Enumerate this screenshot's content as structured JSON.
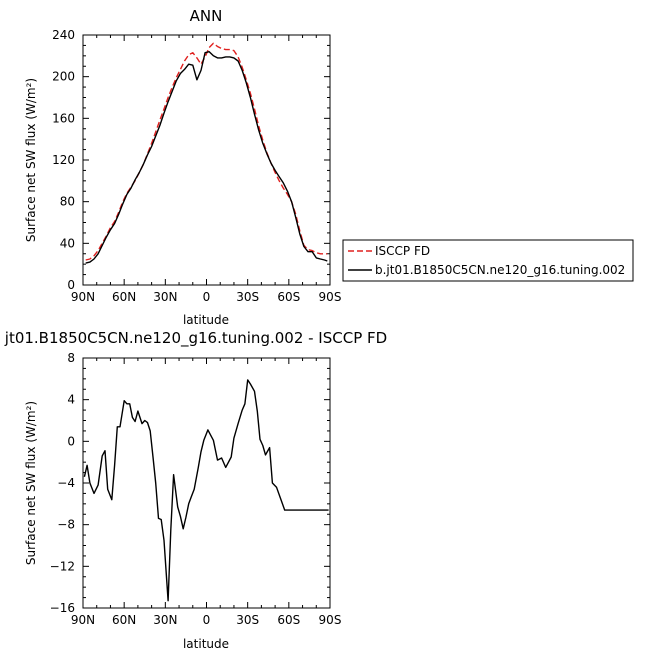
{
  "chart_data": [
    {
      "type": "line",
      "title": "ANN",
      "xlabel": "latitude",
      "ylabel": "Surface net SW flux (W/m²)",
      "ylim": [
        0,
        240
      ],
      "xlim": [
        -90,
        90
      ],
      "y_ticks": [
        0,
        40,
        80,
        120,
        160,
        200,
        240
      ],
      "x_ticks": [
        {
          "value": -90,
          "label": "90N"
        },
        {
          "value": -60,
          "label": "60N"
        },
        {
          "value": -30,
          "label": "30N"
        },
        {
          "value": 0,
          "label": "0"
        },
        {
          "value": 30,
          "label": "30S"
        },
        {
          "value": 60,
          "label": "60S"
        },
        {
          "value": 90,
          "label": "90S"
        }
      ],
      "legend_position": "right-bottom",
      "x": [
        -88,
        -85,
        -82,
        -79,
        -76,
        -73,
        -70,
        -67,
        -64,
        -61,
        -58,
        -55,
        -52,
        -49,
        -46,
        -43,
        -40,
        -37,
        -34,
        -31,
        -28,
        -25,
        -22,
        -19,
        -16,
        -13,
        -10,
        -7,
        -4,
        -1,
        2,
        5,
        8,
        11,
        14,
        17,
        20,
        23,
        26,
        29,
        32,
        35,
        38,
        41,
        44,
        47,
        50,
        53,
        56,
        59,
        62,
        65,
        68,
        71,
        74,
        77,
        80,
        83,
        86,
        88
      ],
      "series": [
        {
          "name": "ISCCP FD",
          "color": "#e0201e",
          "dash": "6,3",
          "values": [
            24,
            25,
            28,
            33,
            40,
            47,
            55,
            61,
            70,
            80,
            88,
            94,
            100,
            108,
            116,
            126,
            136,
            147,
            158,
            169,
            180,
            190,
            199,
            207,
            215,
            221,
            223,
            218,
            212,
            219,
            228,
            232,
            229,
            227,
            226,
            226,
            225,
            219,
            209,
            197,
            184,
            169,
            153,
            139,
            127,
            117,
            108,
            100,
            93,
            87,
            80,
            68,
            52,
            38,
            34,
            33,
            31,
            30,
            30,
            30
          ]
        },
        {
          "name": "b.jt01.B1850C5CN.ne120_g16.tuning.002",
          "color": "#000000",
          "dash": "",
          "values": [
            21,
            22,
            25,
            30,
            38,
            46,
            53,
            59,
            68,
            78,
            87,
            93,
            101,
            108,
            116,
            125,
            133,
            143,
            153,
            165,
            176,
            186,
            196,
            203,
            207,
            212,
            211,
            197,
            206,
            223,
            224,
            220,
            218,
            218,
            219,
            219,
            218,
            215,
            206,
            194,
            180,
            164,
            149,
            136,
            126,
            117,
            110,
            104,
            98,
            90,
            80,
            65,
            49,
            37,
            32,
            32,
            26,
            25,
            24,
            23
          ]
        }
      ]
    },
    {
      "type": "line",
      "title": "jt01.B1850C5CN.ne120_g16.tuning.002 - ISCCP FD",
      "xlabel": "latitude",
      "ylabel": "Surface net SW flux (W/m²)",
      "ylim": [
        -16,
        8
      ],
      "xlim": [
        -90,
        90
      ],
      "y_ticks": [
        -16,
        -12,
        -8,
        -4,
        0,
        4,
        8
      ],
      "x_ticks": [
        {
          "value": -90,
          "label": "90N"
        },
        {
          "value": -60,
          "label": "60N"
        },
        {
          "value": -30,
          "label": "30N"
        },
        {
          "value": 0,
          "label": "0"
        },
        {
          "value": 30,
          "label": "30S"
        },
        {
          "value": 60,
          "label": "60S"
        },
        {
          "value": 90,
          "label": "90S"
        }
      ],
      "x": [
        -89,
        -87,
        -85,
        -82,
        -79,
        -76,
        -74,
        -72,
        -69,
        -67,
        -65,
        -63,
        -60,
        -58,
        -56,
        -54,
        -52,
        -50,
        -47,
        -45,
        -43,
        -41,
        -39,
        -37,
        -35,
        -33,
        -31,
        -28,
        -26,
        -24,
        -21,
        -19,
        -17,
        -15,
        -13,
        -11,
        -9,
        -6,
        -4,
        -2,
        1,
        3,
        5,
        8,
        11,
        14,
        18,
        20,
        23,
        26,
        28,
        30,
        32,
        35,
        37,
        39,
        41,
        43,
        46,
        48,
        51,
        54,
        57,
        59,
        61,
        63,
        65,
        67,
        70,
        72,
        75,
        78,
        81,
        84,
        87,
        89
      ],
      "series": [
        {
          "name": "",
          "color": "#000000",
          "dash": "",
          "values": [
            -3.4,
            -2.3,
            -4.0,
            -5.0,
            -4.2,
            -1.4,
            -0.9,
            -4.6,
            -5.6,
            -2.3,
            1.4,
            1.4,
            3.9,
            3.6,
            3.6,
            2.3,
            1.9,
            2.9,
            1.7,
            2.0,
            1.8,
            1.0,
            -1.5,
            -4.0,
            -7.4,
            -7.5,
            -9.5,
            -15.3,
            -8.5,
            -3.2,
            -6.3,
            -7.2,
            -8.4,
            -7.3,
            -6.0,
            -5.3,
            -4.6,
            -2.5,
            -1.0,
            0.1,
            1.1,
            0.6,
            0.1,
            -1.8,
            -1.6,
            -2.5,
            -1.5,
            0.3,
            1.7,
            3.0,
            3.6,
            5.9,
            5.5,
            4.8,
            2.9,
            0.2,
            -0.4,
            -1.3,
            -0.6,
            -4.0,
            -4.4,
            -5.5,
            -6.6,
            -6.6,
            -6.6,
            -6.6,
            -6.6,
            -6.6,
            -6.6,
            -6.6,
            -6.6,
            -6.6,
            -6.6,
            -6.6,
            -6.6,
            -6.6
          ]
        }
      ]
    }
  ]
}
